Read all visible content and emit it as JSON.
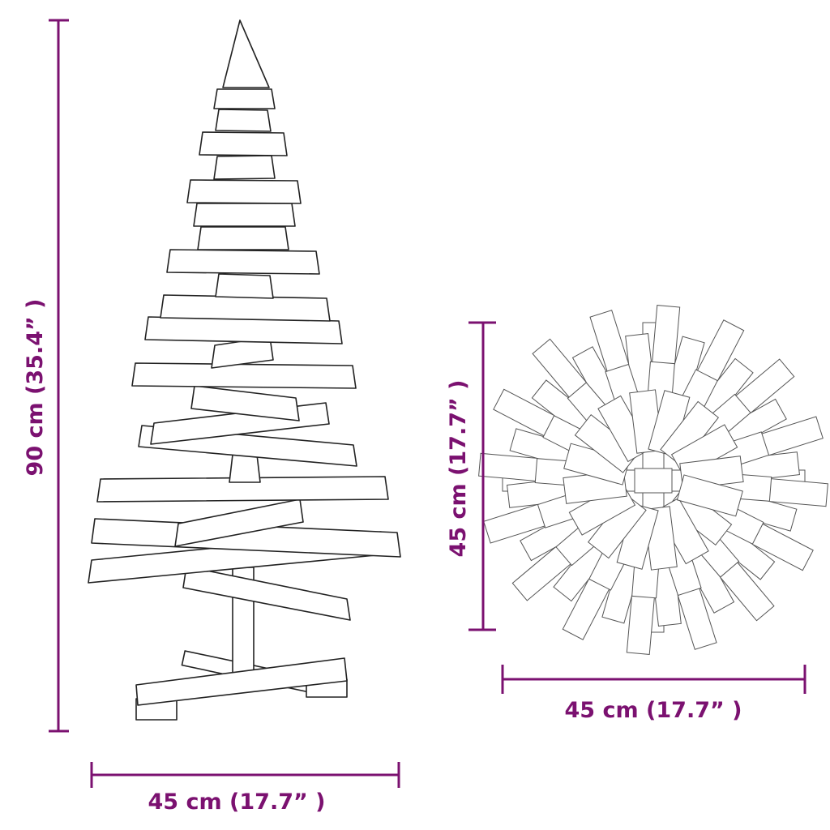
{
  "dimensions": {
    "height_label": "90 cm (35.4” )",
    "tree_width_label": "45 cm (17.7” )",
    "top_depth_label": "45 cm (17.7” )",
    "top_width_label": "45 cm (17.7” )"
  },
  "colors": {
    "dimension": "#7b1170",
    "outline": "#222222"
  }
}
